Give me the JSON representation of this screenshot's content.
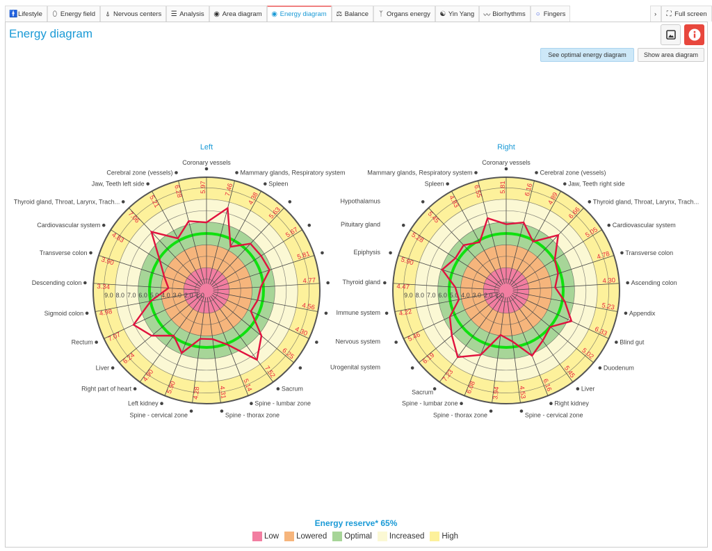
{
  "tabs": [
    {
      "label": "Lifestyle",
      "icon": "person-icon"
    },
    {
      "label": "Energy field",
      "icon": "aura-icon"
    },
    {
      "label": "Nervous centers",
      "icon": "chakra-icon"
    },
    {
      "label": "Analysis",
      "icon": "bars-icon"
    },
    {
      "label": "Area diagram",
      "icon": "area-icon"
    },
    {
      "label": "Energy diagram",
      "icon": "energy-icon",
      "active": true
    },
    {
      "label": "Balance",
      "icon": "scale-icon"
    },
    {
      "label": "Organs energy",
      "icon": "lungs-icon"
    },
    {
      "label": "Yin Yang",
      "icon": "yinyang-icon"
    },
    {
      "label": "Biorhythms",
      "icon": "wave-icon"
    },
    {
      "label": "Fingers",
      "icon": "ring-icon"
    }
  ],
  "more_tabs": "›",
  "fullscreen_label": "Full screen",
  "page_title": "Energy diagram",
  "buttons": {
    "optimal": "See optimal energy diagram",
    "area": "Show area diagram"
  },
  "colors": {
    "low": "#f27ea1",
    "lowered": "#f6b57c",
    "optimal": "#a7d598",
    "increased": "#fbf8d4",
    "high": "#fdf19b",
    "line": "#e0123e",
    "optimal_line": "#10e010",
    "accent": "#1a9ad6"
  },
  "chart_data": [
    {
      "type": "radar",
      "title": "Left",
      "rlim": [
        0,
        10
      ],
      "ring_labels": [
        "9.0",
        "8.0",
        "7.0",
        "6.0",
        "5.0",
        "4.0",
        "3.0",
        "2.0",
        "1.0"
      ],
      "categories": [
        "Coronary vessels",
        "Mammary glands, Respiratory system",
        "Spleen",
        "",
        "",
        "",
        "",
        "",
        "",
        "",
        "Sacrum",
        "Spine - lumbar zone",
        "Spine - thorax zone",
        "Spine - cervical zone",
        "Left kidney",
        "Right part of heart",
        "Liver",
        "Rectum",
        "Sigmoid colon",
        "Descending colon",
        "Transverse colon",
        "Cardiovascular system",
        "Thyroid gland, Throat, Larynx, Trach...",
        "Jaw, Teeth left side",
        "Cerebral zone (vessels)"
      ],
      "values": [
        "5.97",
        "7.46",
        "4.38",
        "5.63",
        "5.67",
        "5.81",
        "4.77",
        "4.56",
        "4.30",
        "6.25",
        "7.52",
        "5.14",
        "4.31",
        "4.28",
        "5.90",
        "4.90",
        "6.24",
        "7.07",
        "4.98",
        "3.34",
        "3.90",
        "4.83",
        "7.06",
        "5.21",
        "6.28"
      ]
    },
    {
      "type": "radar",
      "title": "Right",
      "rlim": [
        0,
        10
      ],
      "ring_labels": [
        "9.0",
        "8.0",
        "7.0",
        "6.0",
        "5.0",
        "4.0",
        "3.0",
        "2.0",
        "1.0"
      ],
      "categories": [
        "Coronary vessels",
        "Cerebral zone (vessels)",
        "Jaw, Teeth right side",
        "Thyroid gland, Throat, Larynx, Trach...",
        "Cardiovascular system",
        "Transverse colon",
        "Ascending colon",
        "Appendix",
        "Blind gut",
        "Duodenum",
        "Liver",
        "Right kidney",
        "Spine - cervical zone",
        "Spine - thorax zone",
        "Spine - lumbar zone",
        "Sacrum",
        "Urogenital system",
        "Nervous system",
        "Immune system",
        "Thyroid gland",
        "Epiphysis",
        "Pituitary gland",
        "Hypothalamus",
        "Spleen",
        "Mammary glands, Respiratory system"
      ],
      "values": [
        "5.81",
        "6.16",
        "4.89",
        "6.66",
        "5.05",
        "4.78",
        "4.30",
        "5.23",
        "6.33",
        "5.02",
        "5.45",
        "6.16",
        "4.53",
        "3.94",
        "6.08",
        "7.23",
        "6.19",
        "5.46",
        "4.22",
        "4.47",
        "5.90",
        "5.28",
        "5.45",
        "4.83",
        "6.55"
      ]
    }
  ],
  "reserve": "Energy reserve* 65%",
  "legend": [
    {
      "label": "Low",
      "color": "#f27ea1"
    },
    {
      "label": "Lowered",
      "color": "#f6b57c"
    },
    {
      "label": "Optimal",
      "color": "#a7d598"
    },
    {
      "label": "Increased",
      "color": "#fbf8d4"
    },
    {
      "label": "High",
      "color": "#fdf19b"
    }
  ]
}
